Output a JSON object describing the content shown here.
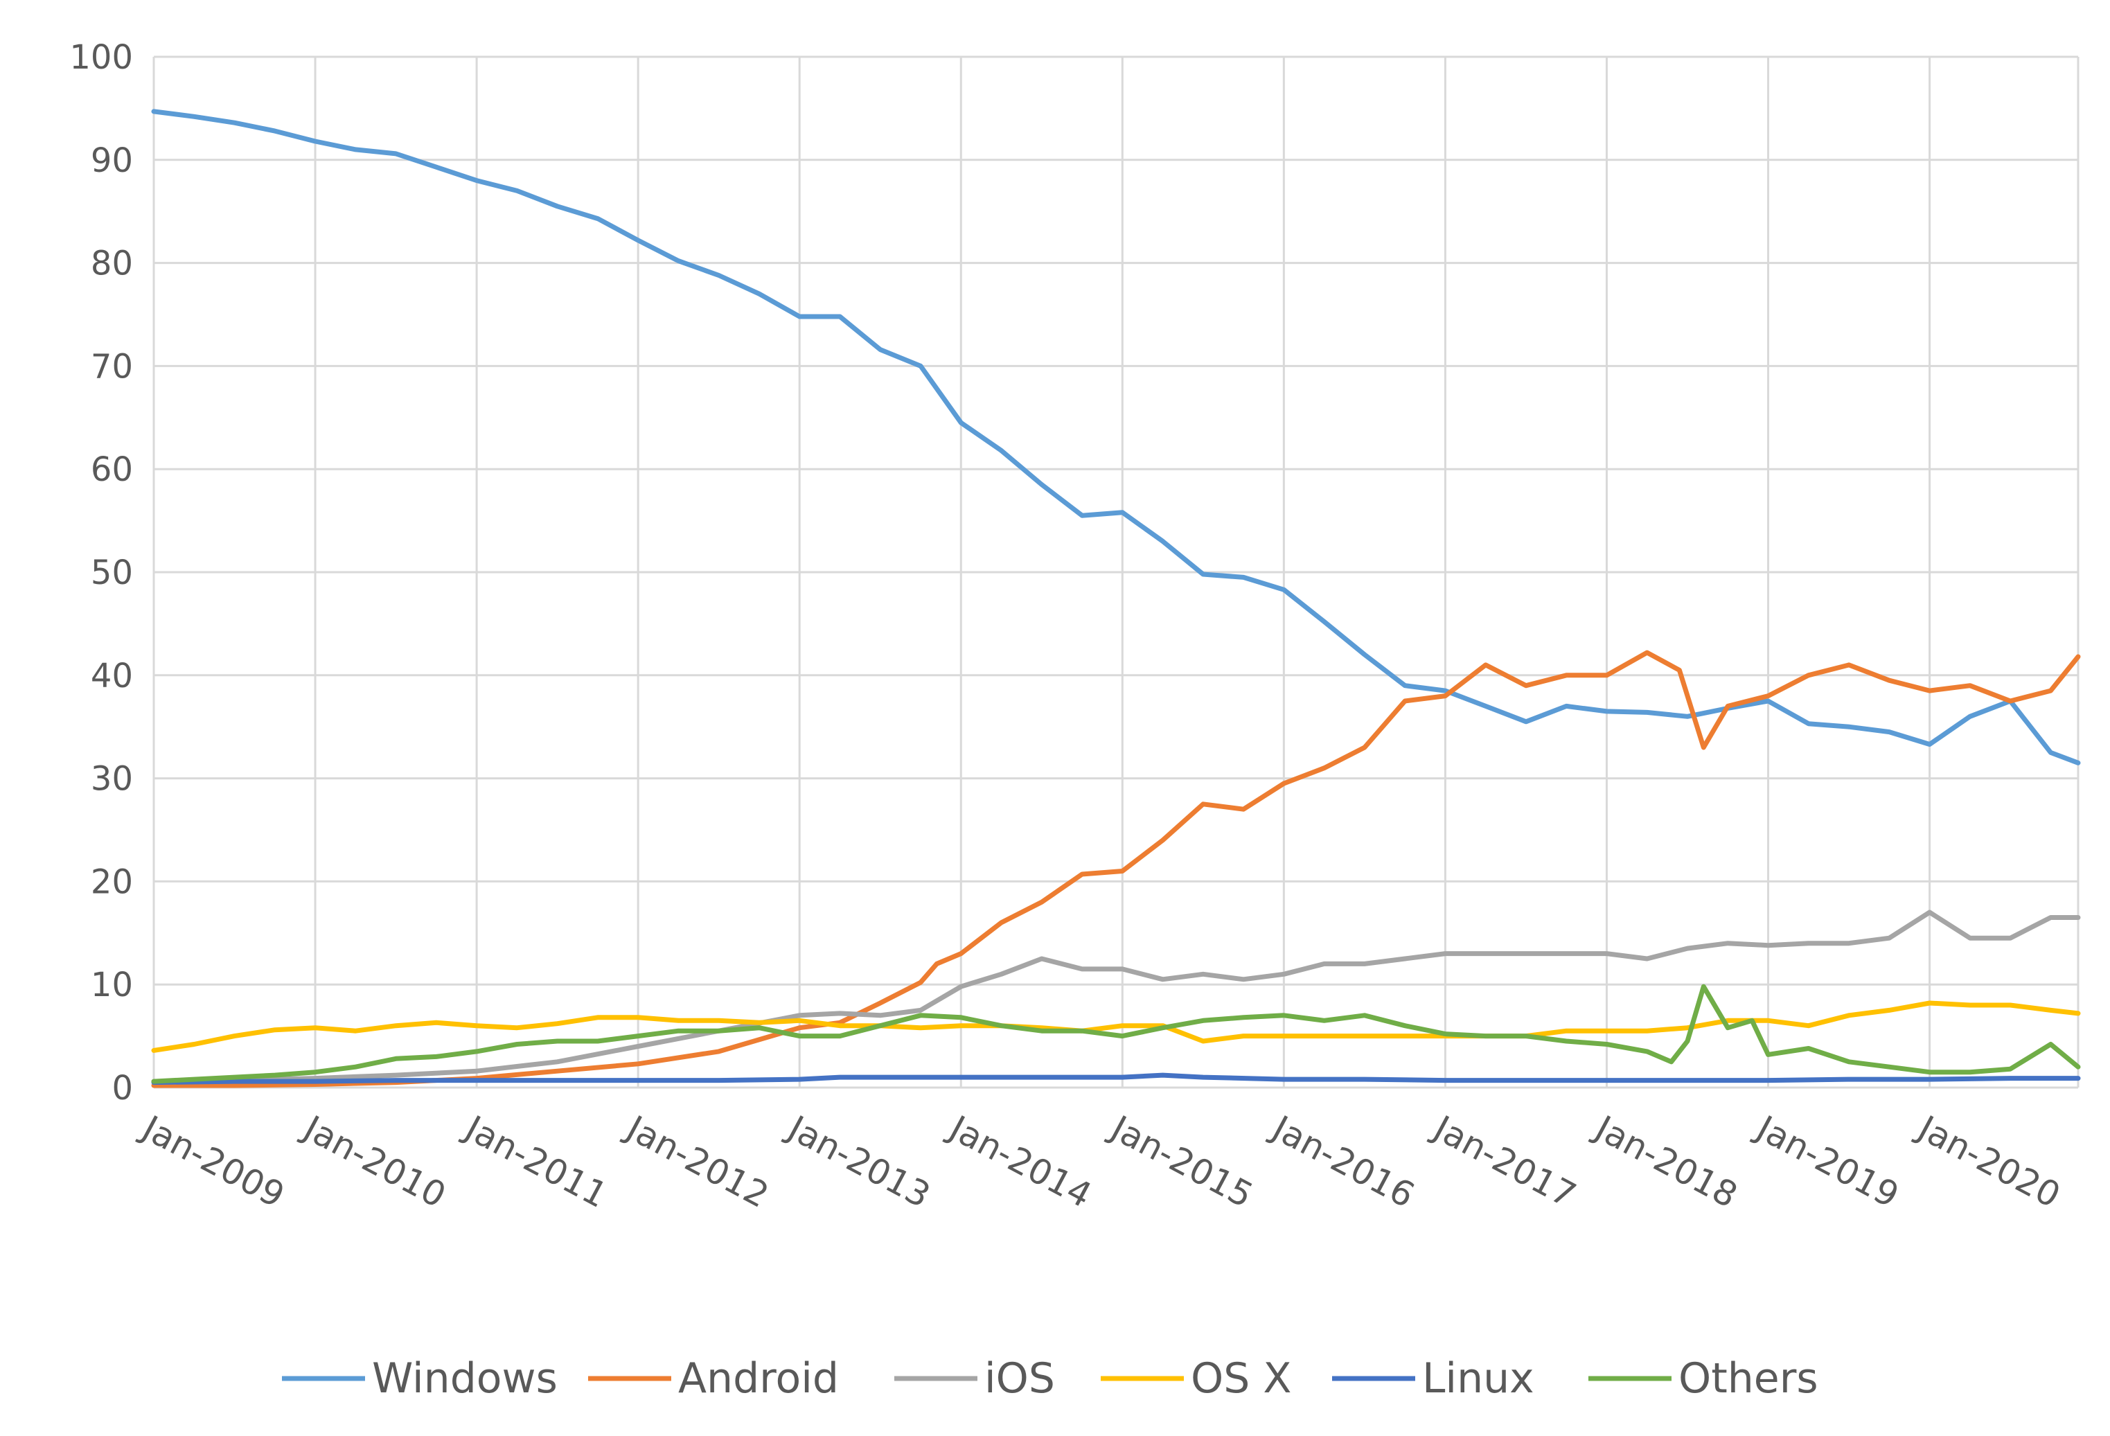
{
  "chart_data": {
    "type": "line",
    "title": "",
    "xlabel": "",
    "ylabel": "",
    "ylim": [
      0,
      100
    ],
    "y_ticks": [
      0,
      10,
      20,
      30,
      40,
      50,
      60,
      70,
      80,
      90,
      100
    ],
    "x_range": [
      2009.0,
      2020.92
    ],
    "x_tick_labels": [
      "Jan-2009",
      "Jan-2010",
      "Jan-2011",
      "Jan-2012",
      "Jan-2013",
      "Jan-2014",
      "Jan-2015",
      "Jan-2016",
      "Jan-2017",
      "Jan-2018",
      "Jan-2019",
      "Jan-2020"
    ],
    "grid": true,
    "legend_position": "bottom",
    "series": [
      {
        "name": "Windows",
        "color": "#5B9BD5",
        "points": [
          [
            2009.0,
            94.7
          ],
          [
            2009.25,
            94.2
          ],
          [
            2009.5,
            93.6
          ],
          [
            2009.75,
            92.8
          ],
          [
            2010.0,
            91.8
          ],
          [
            2010.25,
            91.0
          ],
          [
            2010.5,
            90.6
          ],
          [
            2010.75,
            89.3
          ],
          [
            2011.0,
            88.0
          ],
          [
            2011.25,
            87.0
          ],
          [
            2011.5,
            85.5
          ],
          [
            2011.75,
            84.3
          ],
          [
            2012.0,
            82.2
          ],
          [
            2012.25,
            80.2
          ],
          [
            2012.5,
            78.8
          ],
          [
            2012.75,
            77.0
          ],
          [
            2013.0,
            74.8
          ],
          [
            2013.25,
            74.8
          ],
          [
            2013.5,
            71.6
          ],
          [
            2013.75,
            70.0
          ],
          [
            2014.0,
            64.5
          ],
          [
            2014.25,
            61.8
          ],
          [
            2014.5,
            58.5
          ],
          [
            2014.75,
            55.5
          ],
          [
            2015.0,
            55.8
          ],
          [
            2015.25,
            53.0
          ],
          [
            2015.5,
            49.8
          ],
          [
            2015.75,
            49.5
          ],
          [
            2016.0,
            48.3
          ],
          [
            2016.25,
            45.2
          ],
          [
            2016.5,
            42.0
          ],
          [
            2016.75,
            39.0
          ],
          [
            2017.0,
            38.5
          ],
          [
            2017.25,
            37.0
          ],
          [
            2017.5,
            35.5
          ],
          [
            2017.75,
            37.0
          ],
          [
            2018.0,
            36.5
          ],
          [
            2018.25,
            36.4
          ],
          [
            2018.5,
            36.0
          ],
          [
            2018.75,
            36.8
          ],
          [
            2019.0,
            37.5
          ],
          [
            2019.25,
            35.3
          ],
          [
            2019.5,
            35.0
          ],
          [
            2019.75,
            34.5
          ],
          [
            2020.0,
            33.3
          ],
          [
            2020.25,
            36.0
          ],
          [
            2020.5,
            37.5
          ],
          [
            2020.75,
            32.5
          ],
          [
            2020.92,
            31.5
          ]
        ]
      },
      {
        "name": "Android",
        "color": "#ED7D31",
        "points": [
          [
            2009.0,
            0.2
          ],
          [
            2009.5,
            0.2
          ],
          [
            2010.0,
            0.3
          ],
          [
            2010.5,
            0.5
          ],
          [
            2011.0,
            0.9
          ],
          [
            2011.5,
            1.6
          ],
          [
            2012.0,
            2.3
          ],
          [
            2012.5,
            3.5
          ],
          [
            2013.0,
            5.8
          ],
          [
            2013.25,
            6.3
          ],
          [
            2013.5,
            8.2
          ],
          [
            2013.75,
            10.2
          ],
          [
            2013.85,
            12.0
          ],
          [
            2014.0,
            13.0
          ],
          [
            2014.25,
            16.0
          ],
          [
            2014.5,
            18.0
          ],
          [
            2014.75,
            20.7
          ],
          [
            2015.0,
            21.0
          ],
          [
            2015.25,
            24.0
          ],
          [
            2015.5,
            27.5
          ],
          [
            2015.75,
            27.0
          ],
          [
            2016.0,
            29.5
          ],
          [
            2016.25,
            31.0
          ],
          [
            2016.5,
            33.0
          ],
          [
            2016.75,
            37.5
          ],
          [
            2017.0,
            38.0
          ],
          [
            2017.25,
            41.0
          ],
          [
            2017.5,
            39.0
          ],
          [
            2017.75,
            40.0
          ],
          [
            2018.0,
            40.0
          ],
          [
            2018.25,
            42.2
          ],
          [
            2018.45,
            40.5
          ],
          [
            2018.6,
            33.0
          ],
          [
            2018.75,
            37.0
          ],
          [
            2019.0,
            38.0
          ],
          [
            2019.25,
            40.0
          ],
          [
            2019.5,
            41.0
          ],
          [
            2019.75,
            39.5
          ],
          [
            2020.0,
            38.5
          ],
          [
            2020.25,
            39.0
          ],
          [
            2020.5,
            37.5
          ],
          [
            2020.75,
            38.5
          ],
          [
            2020.92,
            41.8
          ]
        ]
      },
      {
        "name": "iOS",
        "color": "#A5A5A5",
        "points": [
          [
            2009.0,
            0.6
          ],
          [
            2009.5,
            0.7
          ],
          [
            2010.0,
            0.9
          ],
          [
            2010.5,
            1.2
          ],
          [
            2011.0,
            1.6
          ],
          [
            2011.5,
            2.5
          ],
          [
            2012.0,
            4.0
          ],
          [
            2012.5,
            5.5
          ],
          [
            2013.0,
            7.0
          ],
          [
            2013.25,
            7.2
          ],
          [
            2013.5,
            7.0
          ],
          [
            2013.75,
            7.5
          ],
          [
            2014.0,
            9.8
          ],
          [
            2014.25,
            11.0
          ],
          [
            2014.5,
            12.5
          ],
          [
            2014.75,
            11.5
          ],
          [
            2015.0,
            11.5
          ],
          [
            2015.25,
            10.5
          ],
          [
            2015.5,
            11.0
          ],
          [
            2015.75,
            10.5
          ],
          [
            2016.0,
            11.0
          ],
          [
            2016.25,
            12.0
          ],
          [
            2016.5,
            12.0
          ],
          [
            2016.75,
            12.5
          ],
          [
            2017.0,
            13.0
          ],
          [
            2017.25,
            13.0
          ],
          [
            2017.5,
            13.0
          ],
          [
            2017.75,
            13.0
          ],
          [
            2018.0,
            13.0
          ],
          [
            2018.25,
            12.5
          ],
          [
            2018.5,
            13.5
          ],
          [
            2018.75,
            14.0
          ],
          [
            2019.0,
            13.8
          ],
          [
            2019.25,
            14.0
          ],
          [
            2019.5,
            14.0
          ],
          [
            2019.75,
            14.5
          ],
          [
            2020.0,
            17.0
          ],
          [
            2020.25,
            14.5
          ],
          [
            2020.5,
            14.5
          ],
          [
            2020.75,
            16.5
          ],
          [
            2020.92,
            16.5
          ]
        ]
      },
      {
        "name": "OS X",
        "color": "#FFC000",
        "points": [
          [
            2009.0,
            3.6
          ],
          [
            2009.25,
            4.2
          ],
          [
            2009.5,
            5.0
          ],
          [
            2009.75,
            5.6
          ],
          [
            2010.0,
            5.8
          ],
          [
            2010.25,
            5.5
          ],
          [
            2010.5,
            6.0
          ],
          [
            2010.75,
            6.3
          ],
          [
            2011.0,
            6.0
          ],
          [
            2011.25,
            5.8
          ],
          [
            2011.5,
            6.2
          ],
          [
            2011.75,
            6.8
          ],
          [
            2012.0,
            6.8
          ],
          [
            2012.25,
            6.5
          ],
          [
            2012.5,
            6.5
          ],
          [
            2012.75,
            6.3
          ],
          [
            2013.0,
            6.5
          ],
          [
            2013.25,
            6.0
          ],
          [
            2013.5,
            6.0
          ],
          [
            2013.75,
            5.8
          ],
          [
            2014.0,
            6.0
          ],
          [
            2014.25,
            6.0
          ],
          [
            2014.5,
            5.8
          ],
          [
            2014.75,
            5.5
          ],
          [
            2015.0,
            6.0
          ],
          [
            2015.25,
            6.0
          ],
          [
            2015.5,
            4.5
          ],
          [
            2015.75,
            5.0
          ],
          [
            2016.0,
            5.0
          ],
          [
            2016.25,
            5.0
          ],
          [
            2016.5,
            5.0
          ],
          [
            2016.75,
            5.0
          ],
          [
            2017.0,
            5.0
          ],
          [
            2017.25,
            5.0
          ],
          [
            2017.5,
            5.0
          ],
          [
            2017.75,
            5.5
          ],
          [
            2018.0,
            5.5
          ],
          [
            2018.25,
            5.5
          ],
          [
            2018.5,
            5.8
          ],
          [
            2018.75,
            6.5
          ],
          [
            2019.0,
            6.5
          ],
          [
            2019.25,
            6.0
          ],
          [
            2019.5,
            7.0
          ],
          [
            2019.75,
            7.5
          ],
          [
            2020.0,
            8.2
          ],
          [
            2020.25,
            8.0
          ],
          [
            2020.5,
            8.0
          ],
          [
            2020.75,
            7.5
          ],
          [
            2020.92,
            7.2
          ]
        ]
      },
      {
        "name": "Linux",
        "color": "#4472C4",
        "points": [
          [
            2009.0,
            0.5
          ],
          [
            2009.5,
            0.6
          ],
          [
            2010.0,
            0.6
          ],
          [
            2010.5,
            0.7
          ],
          [
            2011.0,
            0.7
          ],
          [
            2011.5,
            0.7
          ],
          [
            2012.0,
            0.7
          ],
          [
            2012.5,
            0.7
          ],
          [
            2013.0,
            0.8
          ],
          [
            2013.25,
            1.0
          ],
          [
            2013.5,
            1.0
          ],
          [
            2014.0,
            1.0
          ],
          [
            2014.5,
            1.0
          ],
          [
            2015.0,
            1.0
          ],
          [
            2015.25,
            1.2
          ],
          [
            2015.5,
            1.0
          ],
          [
            2016.0,
            0.8
          ],
          [
            2016.5,
            0.8
          ],
          [
            2017.0,
            0.7
          ],
          [
            2017.5,
            0.7
          ],
          [
            2018.0,
            0.7
          ],
          [
            2018.5,
            0.7
          ],
          [
            2019.0,
            0.7
          ],
          [
            2019.5,
            0.8
          ],
          [
            2020.0,
            0.8
          ],
          [
            2020.5,
            0.9
          ],
          [
            2020.92,
            0.9
          ]
        ]
      },
      {
        "name": "Others",
        "color": "#70AD47",
        "points": [
          [
            2009.0,
            0.6
          ],
          [
            2009.25,
            0.8
          ],
          [
            2009.5,
            1.0
          ],
          [
            2009.75,
            1.2
          ],
          [
            2010.0,
            1.5
          ],
          [
            2010.25,
            2.0
          ],
          [
            2010.5,
            2.8
          ],
          [
            2010.75,
            3.0
          ],
          [
            2011.0,
            3.5
          ],
          [
            2011.25,
            4.2
          ],
          [
            2011.5,
            4.5
          ],
          [
            2011.75,
            4.5
          ],
          [
            2012.0,
            5.0
          ],
          [
            2012.25,
            5.5
          ],
          [
            2012.5,
            5.5
          ],
          [
            2012.75,
            5.8
          ],
          [
            2013.0,
            5.0
          ],
          [
            2013.25,
            5.0
          ],
          [
            2013.5,
            6.0
          ],
          [
            2013.75,
            7.0
          ],
          [
            2014.0,
            6.8
          ],
          [
            2014.25,
            6.0
          ],
          [
            2014.5,
            5.5
          ],
          [
            2014.75,
            5.5
          ],
          [
            2015.0,
            5.0
          ],
          [
            2015.25,
            5.8
          ],
          [
            2015.5,
            6.5
          ],
          [
            2015.75,
            6.8
          ],
          [
            2016.0,
            7.0
          ],
          [
            2016.25,
            6.5
          ],
          [
            2016.5,
            7.0
          ],
          [
            2016.75,
            6.0
          ],
          [
            2017.0,
            5.2
          ],
          [
            2017.25,
            5.0
          ],
          [
            2017.5,
            5.0
          ],
          [
            2017.75,
            4.5
          ],
          [
            2018.0,
            4.2
          ],
          [
            2018.25,
            3.5
          ],
          [
            2018.4,
            2.5
          ],
          [
            2018.5,
            4.5
          ],
          [
            2018.6,
            9.8
          ],
          [
            2018.75,
            5.8
          ],
          [
            2018.9,
            6.5
          ],
          [
            2019.0,
            3.2
          ],
          [
            2019.25,
            3.8
          ],
          [
            2019.5,
            2.5
          ],
          [
            2019.75,
            2.0
          ],
          [
            2020.0,
            1.5
          ],
          [
            2020.25,
            1.5
          ],
          [
            2020.5,
            1.8
          ],
          [
            2020.75,
            4.2
          ],
          [
            2020.92,
            2.0
          ]
        ]
      }
    ]
  }
}
